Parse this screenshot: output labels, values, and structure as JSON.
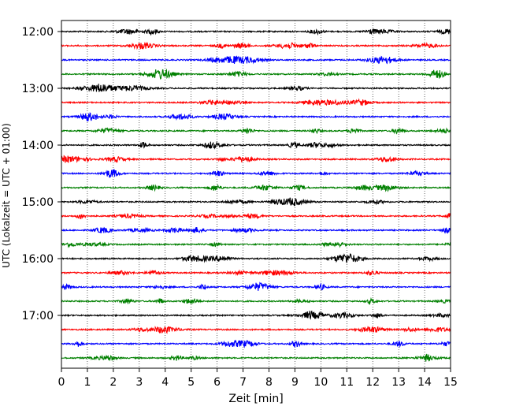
{
  "chart_data": {
    "type": "line",
    "title": "",
    "xlabel": "Zeit  [min]",
    "ylabel": "UTC (Lokalzeit = UTC + 01:00)",
    "xlim": [
      0,
      15
    ],
    "x_ticks": [
      "0",
      "1",
      "2",
      "3",
      "4",
      "5",
      "6",
      "7",
      "8",
      "9",
      "10",
      "11",
      "12",
      "13",
      "14",
      "15"
    ],
    "y_ticks": [
      "12:00",
      "13:00",
      "14:00",
      "15:00",
      "16:00",
      "17:00"
    ],
    "grid": "vertical dotted lines at each minute",
    "trace_interval_min": 15,
    "trace_colors": [
      "#000000",
      "#ff0000",
      "#0000ff",
      "#008000"
    ],
    "series": [
      {
        "start": "12:00",
        "color": "#000000"
      },
      {
        "start": "12:15",
        "color": "#ff0000"
      },
      {
        "start": "12:30",
        "color": "#0000ff"
      },
      {
        "start": "12:45",
        "color": "#008000"
      },
      {
        "start": "13:00",
        "color": "#000000"
      },
      {
        "start": "13:15",
        "color": "#ff0000"
      },
      {
        "start": "13:30",
        "color": "#0000ff"
      },
      {
        "start": "13:45",
        "color": "#008000"
      },
      {
        "start": "14:00",
        "color": "#000000"
      },
      {
        "start": "14:15",
        "color": "#ff0000"
      },
      {
        "start": "14:30",
        "color": "#0000ff"
      },
      {
        "start": "14:45",
        "color": "#008000"
      },
      {
        "start": "15:00",
        "color": "#000000"
      },
      {
        "start": "15:15",
        "color": "#ff0000"
      },
      {
        "start": "15:30",
        "color": "#0000ff"
      },
      {
        "start": "15:45",
        "color": "#008000"
      },
      {
        "start": "16:00",
        "color": "#000000"
      },
      {
        "start": "16:15",
        "color": "#ff0000"
      },
      {
        "start": "16:30",
        "color": "#0000ff"
      },
      {
        "start": "16:45",
        "color": "#008000"
      },
      {
        "start": "17:00",
        "color": "#000000"
      },
      {
        "start": "17:15",
        "color": "#ff0000"
      },
      {
        "start": "17:30",
        "color": "#0000ff"
      },
      {
        "start": "17:45",
        "color": "#008000"
      }
    ]
  }
}
